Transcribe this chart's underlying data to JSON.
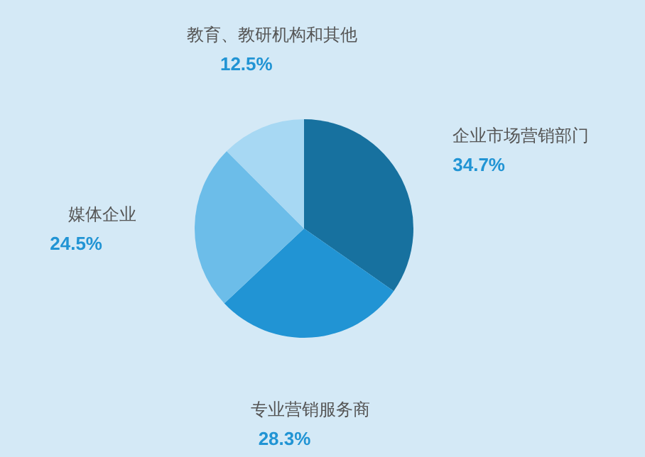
{
  "chart_data": {
    "type": "pie",
    "categories": [
      "企业市场营销部门",
      "专业营销服务商",
      "媒体企业",
      "教育、教研机构和其他"
    ],
    "values": [
      34.7,
      28.3,
      24.5,
      12.5
    ],
    "value_labels": [
      "34.7%",
      "28.3%",
      "24.5%",
      "12.5%"
    ],
    "colors": [
      "#17719f",
      "#2194d4",
      "#6cbde9",
      "#a7d8f3"
    ],
    "legend": false
  }
}
